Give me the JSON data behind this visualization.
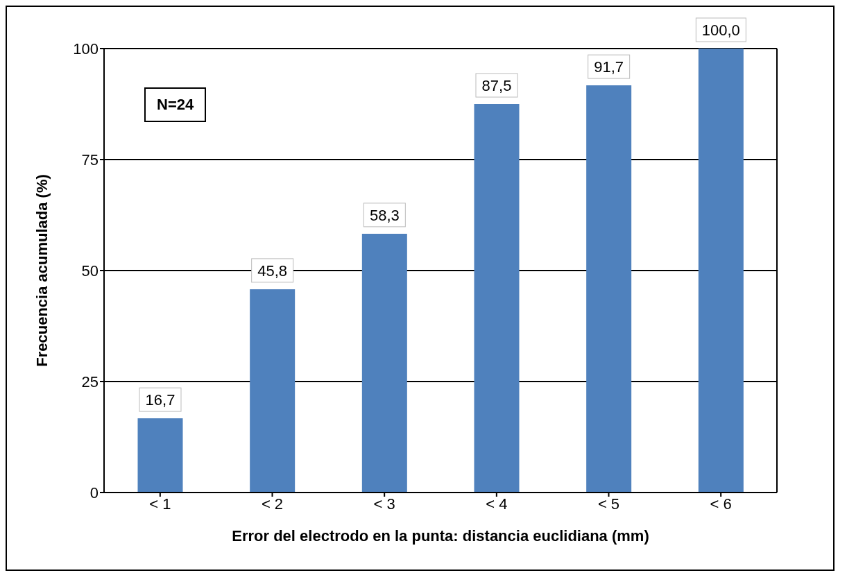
{
  "chart_data": {
    "type": "bar",
    "categories": [
      "< 1",
      "< 2",
      "< 3",
      "< 4",
      "< 5",
      "< 6"
    ],
    "values": [
      16.7,
      45.8,
      58.3,
      87.5,
      91.7,
      100.0
    ],
    "value_labels": [
      "16,7",
      "45,8",
      "58,3",
      "87,5",
      "91,7",
      "100,0"
    ],
    "color": "#4f81bd",
    "xlabel": "Error del electrodo en la punta: distancia euclidiana (mm)",
    "ylabel": "Frecuencia acumulada (%)",
    "ylim": [
      0,
      100
    ],
    "yticks": [
      0,
      25,
      50,
      75,
      100
    ],
    "grid": "y",
    "annotations": [
      "N=24"
    ]
  }
}
